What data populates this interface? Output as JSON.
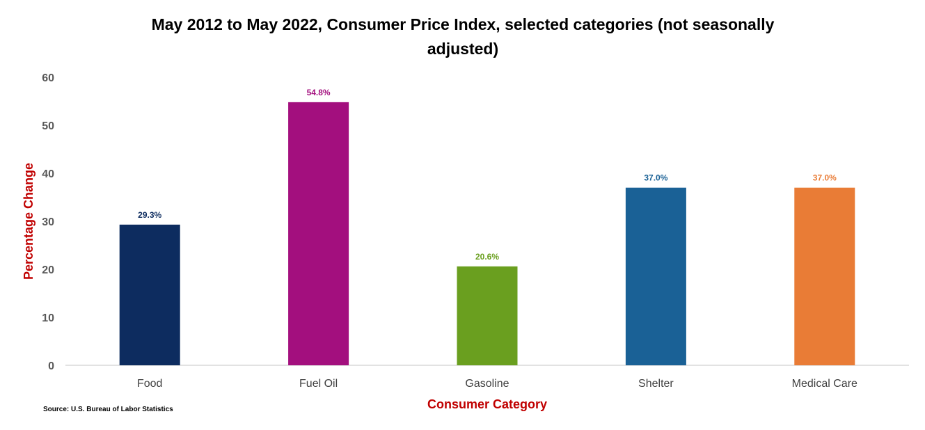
{
  "chart_data": {
    "type": "bar",
    "title_line1": "May 2012 to May 2022, Consumer Price Index, selected categories (not seasonally",
    "title_line2": "adjusted)",
    "xlabel": "Consumer Category",
    "ylabel": "Percentage Change",
    "ylim": [
      0,
      60
    ],
    "yticks": [
      "0",
      "10",
      "20",
      "30",
      "40",
      "50",
      "60"
    ],
    "categories": [
      "Food",
      "Fuel Oil",
      "Gasoline",
      "Shelter",
      "Medical Care"
    ],
    "values": [
      29.3,
      54.8,
      20.6,
      37.0,
      37.0
    ],
    "data_labels": [
      "29.3%",
      "54.8%",
      "20.6%",
      "37.0%",
      "37.0%"
    ],
    "colors": [
      "#0d2c5f",
      "#a30f7e",
      "#6a9f1f",
      "#1a6196",
      "#e97c36"
    ],
    "grid": false,
    "legend": "none",
    "source": "Source: U.S. Bureau of Labor Statistics"
  }
}
